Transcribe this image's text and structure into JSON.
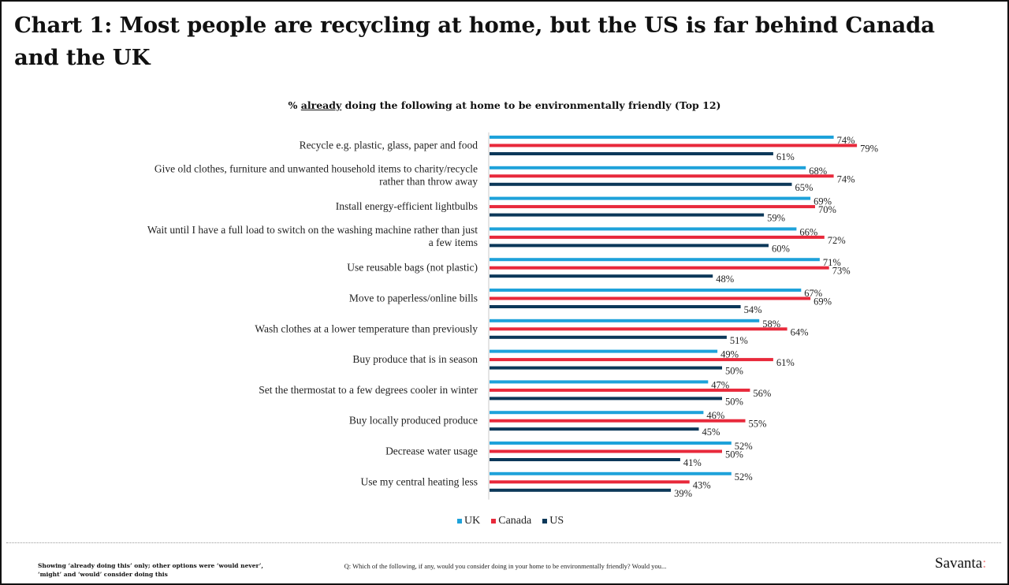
{
  "header": {
    "title": "Chart 1: Most people are recycling at home, but the US is far behind Canada and the UK"
  },
  "footer": {
    "note": "Showing ‘already doing this’ only; other options were ‘would never’, ‘might’ and ‘would’ consider doing this",
    "question": "Q: Which of the following, if any, would you consider doing in your home to be environmentally friendly? Would you...",
    "brand_name": "Savanta",
    "brand_mark": ":"
  },
  "colors": {
    "UK": "#1ea2da",
    "Canada": "#e8293b",
    "US": "#0c3859",
    "axis": "#c8c8c8"
  },
  "chart_data": {
    "type": "bar",
    "orientation": "horizontal",
    "title": "% already doing the following at home to be environmentally friendly (Top 12)",
    "title_parts": {
      "prefix": "% ",
      "underlined": "already",
      "suffix": " doing the following at home to be environmentally friendly (Top 12)"
    },
    "xlabel": "",
    "ylabel": "",
    "xlim": [
      0,
      100
    ],
    "grid": false,
    "legend_position": "bottom",
    "value_suffix": "%",
    "categories": [
      "Recycle e.g. plastic, glass, paper and food",
      "Give old clothes, furniture and unwanted household items to charity/recycle rather than throw away",
      "Install energy-efficient lightbulbs",
      "Wait until I have a full load to switch on the washing machine rather than just a few items",
      "Use reusable bags (not plastic)",
      "Move to paperless/online bills",
      "Wash clothes at a lower temperature than previously",
      "Buy produce that is in season",
      "Set the thermostat to a few degrees cooler in winter",
      "Buy locally produced produce",
      "Decrease water usage",
      "Use my central heating less"
    ],
    "category_lines": [
      [
        "Recycle e.g. plastic, glass, paper and food"
      ],
      [
        "Give old clothes, furniture and unwanted household items to charity/recycle",
        "rather than throw away"
      ],
      [
        "Install energy-efficient lightbulbs"
      ],
      [
        "Wait until I have a full load to switch on the washing machine rather than just",
        "a few items"
      ],
      [
        "Use reusable bags (not plastic)"
      ],
      [
        "Move to paperless/online bills"
      ],
      [
        "Wash clothes at a lower temperature than previously"
      ],
      [
        "Buy produce that is in season"
      ],
      [
        "Set the thermostat to a few degrees cooler in winter"
      ],
      [
        "Buy locally produced produce"
      ],
      [
        "Decrease water usage"
      ],
      [
        "Use my central heating less"
      ]
    ],
    "series": [
      {
        "name": "UK",
        "values": [
          74,
          68,
          69,
          66,
          71,
          67,
          58,
          49,
          47,
          46,
          52,
          52
        ]
      },
      {
        "name": "Canada",
        "values": [
          79,
          74,
          70,
          72,
          73,
          69,
          64,
          61,
          56,
          55,
          50,
          43
        ]
      },
      {
        "name": "US",
        "values": [
          61,
          65,
          59,
          60,
          48,
          54,
          51,
          50,
          50,
          45,
          41,
          39
        ]
      }
    ]
  }
}
